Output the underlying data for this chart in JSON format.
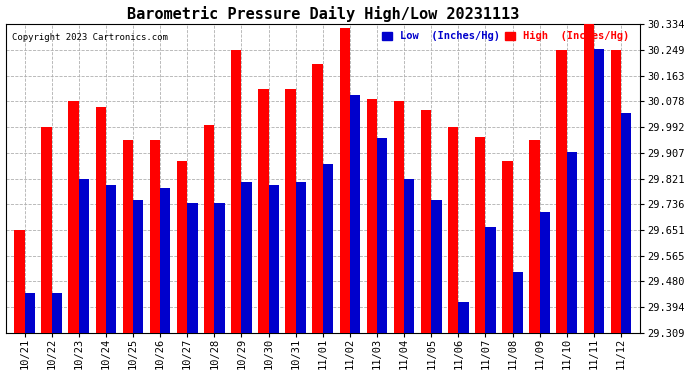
{
  "title": "Barometric Pressure Daily High/Low 20231113",
  "copyright": "Copyright 2023 Cartronics.com",
  "legend_low": "Low  (Inches/Hg)",
  "legend_high": "High  (Inches/Hg)",
  "ymin": 29.309,
  "ymax": 30.334,
  "yticks": [
    29.309,
    29.394,
    29.48,
    29.565,
    29.651,
    29.736,
    29.821,
    29.907,
    29.992,
    30.078,
    30.163,
    30.249,
    30.334
  ],
  "dates": [
    "10/21",
    "10/22",
    "10/23",
    "10/24",
    "10/25",
    "10/26",
    "10/27",
    "10/28",
    "10/29",
    "10/30",
    "10/31",
    "11/01",
    "11/02",
    "11/03",
    "11/04",
    "11/05",
    "11/06",
    "11/07",
    "11/08",
    "11/09",
    "11/10",
    "11/11",
    "11/12"
  ],
  "high": [
    29.651,
    29.992,
    30.078,
    30.06,
    29.95,
    29.95,
    29.878,
    30.0,
    30.249,
    30.12,
    30.12,
    30.2,
    30.32,
    30.085,
    30.078,
    30.048,
    29.992,
    29.96,
    29.878,
    29.95,
    30.249,
    30.334,
    30.249
  ],
  "low": [
    29.44,
    29.44,
    29.821,
    29.8,
    29.75,
    29.79,
    29.74,
    29.74,
    29.81,
    29.8,
    29.81,
    29.868,
    30.1,
    29.955,
    29.821,
    29.75,
    29.41,
    29.66,
    29.51,
    29.71,
    29.91,
    30.25,
    30.04
  ],
  "bar_color_high": "#ff0000",
  "bar_color_low": "#0000cc",
  "background_color": "#ffffff",
  "grid_color": "#b0b0b0",
  "title_fontsize": 11,
  "tick_fontsize": 7.5,
  "bar_width": 0.38
}
